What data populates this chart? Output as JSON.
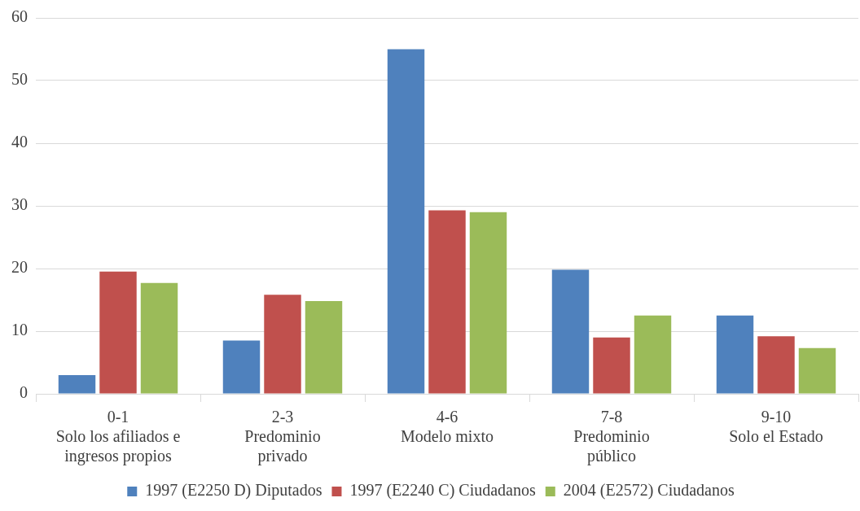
{
  "chart_data": {
    "type": "bar",
    "categories": [
      "0-1\nSolo los afiliados e\ningresos propios",
      "2-3\nPredominio\nprivado",
      "4-6\nModelo mixto",
      "7-8\nPredominio\npúblico",
      "9-10\nSolo el Estado"
    ],
    "series": [
      {
        "name": "1997 (E2250 D) Diputados",
        "color": "#4f81bd",
        "values": [
          3,
          8.5,
          55,
          19.8,
          12.5
        ]
      },
      {
        "name": "1997 (E2240 C) Ciudadanos",
        "color": "#c0504d",
        "values": [
          19.5,
          15.8,
          29.3,
          9,
          9.2
        ]
      },
      {
        "name": "2004 (E2572) Ciudadanos",
        "color": "#9bbb59",
        "values": [
          17.7,
          14.8,
          29,
          12.5,
          7.3
        ]
      }
    ],
    "ylim": [
      0,
      60
    ],
    "yticks": [
      0,
      10,
      20,
      30,
      40,
      50,
      60
    ],
    "grid": "y",
    "legend": "bottom"
  }
}
